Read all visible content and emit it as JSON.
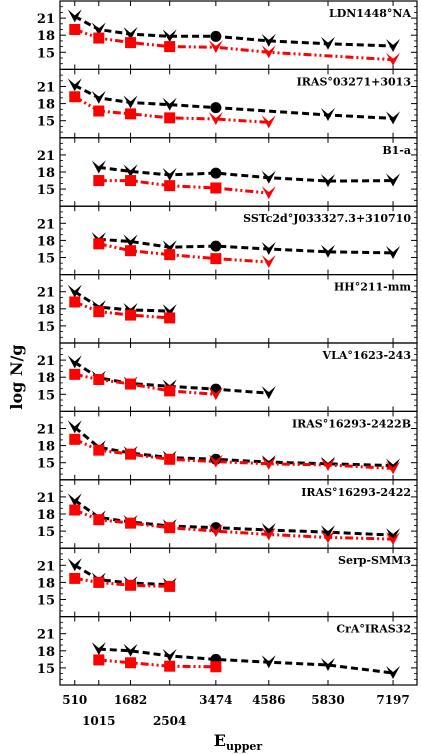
{
  "chart_data": {
    "type": "line",
    "xlabel": "E",
    "xlabel_sub": "upper",
    "ylabel": "log N/g",
    "xlim": [
      200,
      7700
    ],
    "ylim": [
      12,
      24
    ],
    "yticks": [
      15,
      18,
      21
    ],
    "xticks_top_row": [
      510,
      1682,
      3474,
      4586,
      5830,
      7197
    ],
    "xticks_bottom_row": [
      1015,
      2504
    ],
    "x_levels": [
      510,
      1015,
      1682,
      2504,
      3474,
      4586,
      5830,
      7197
    ],
    "colors": {
      "black_series": "#000000",
      "red_series": "#ff0000"
    },
    "panels": [
      {
        "title": "LDN1448°NA",
        "black": {
          "x": [
            510,
            1015,
            1682,
            2504,
            3474,
            4586,
            5830,
            7197
          ],
          "y": [
            21.3,
            19.0,
            18.2,
            17.8,
            17.8,
            17.0,
            16.5,
            16.1
          ]
        },
        "red": {
          "x": [
            510,
            1015,
            1682,
            2504,
            3474,
            4586,
            7197
          ],
          "y": [
            19.0,
            17.5,
            16.7,
            16.0,
            15.9,
            15.0,
            13.7
          ]
        }
      },
      {
        "title": "IRAS°03271+3013",
        "black": {
          "x": [
            510,
            1015,
            1682,
            2504,
            3474,
            5830,
            7197
          ],
          "y": [
            21.2,
            19.0,
            18.2,
            17.8,
            17.3,
            16.0,
            15.4
          ]
        },
        "red": {
          "x": [
            510,
            1015,
            1682,
            2504,
            3474,
            4586
          ],
          "y": [
            19.2,
            16.7,
            16.2,
            15.5,
            15.3,
            14.7
          ]
        }
      },
      {
        "title": "B1-a",
        "black": {
          "x": [
            1015,
            1682,
            2504,
            3474,
            4586,
            5830,
            7197
          ],
          "y": [
            18.8,
            18.1,
            17.5,
            17.8,
            17.0,
            16.4,
            16.5
          ]
        },
        "red": {
          "x": [
            1015,
            1682,
            2504,
            3474,
            4586
          ],
          "y": [
            16.5,
            16.5,
            15.6,
            15.2,
            14.3
          ]
        }
      },
      {
        "title": "SSTc2d°J033327.3+310710",
        "black": {
          "x": [
            1015,
            1682,
            2504,
            3474,
            4586,
            5830,
            7197
          ],
          "y": [
            18.2,
            17.8,
            16.8,
            17.0,
            16.5,
            16.0,
            15.8
          ]
        },
        "red": {
          "x": [
            1015,
            1682,
            2504,
            3474,
            4586
          ],
          "y": [
            17.4,
            16.2,
            15.5,
            14.8,
            14.2
          ]
        }
      },
      {
        "title": "HH°211-mm",
        "black": {
          "x": [
            510,
            1015,
            1682,
            2504
          ],
          "y": [
            21.0,
            18.3,
            17.8,
            17.6
          ]
        },
        "red": {
          "x": [
            510,
            1015,
            1682,
            2504
          ],
          "y": [
            19.2,
            17.5,
            16.9,
            16.4
          ]
        }
      },
      {
        "title": "VLA°1623-243",
        "black": {
          "x": [
            510,
            1015,
            1682,
            2504,
            3474,
            4586
          ],
          "y": [
            20.6,
            17.9,
            16.9,
            16.4,
            15.9,
            15.2
          ]
        },
        "red": {
          "x": [
            510,
            1015,
            1682,
            2504,
            3474
          ],
          "y": [
            18.5,
            17.6,
            16.8,
            15.6,
            15.0
          ]
        }
      },
      {
        "title": "IRAS°16293-2422B",
        "black": {
          "x": [
            510,
            1015,
            1682,
            2504,
            3474,
            4586,
            5830,
            7197
          ],
          "y": [
            21.2,
            17.7,
            16.7,
            15.9,
            15.6,
            15.1,
            14.8,
            14.5
          ]
        },
        "red": {
          "x": [
            510,
            1015,
            1682,
            2504,
            3474,
            4586,
            5830,
            7197
          ],
          "y": [
            19.1,
            17.2,
            16.5,
            15.6,
            15.2,
            14.8,
            14.6,
            14.0
          ]
        }
      },
      {
        "title": "IRAS°16293-2422",
        "black": {
          "x": [
            510,
            1015,
            1682,
            2504,
            3474,
            4586,
            5830,
            7197
          ],
          "y": [
            20.4,
            17.4,
            16.6,
            15.9,
            15.6,
            15.2,
            14.8,
            14.3
          ]
        },
        "red": {
          "x": [
            510,
            1015,
            1682,
            2504,
            3474,
            4586,
            5830,
            7197
          ],
          "y": [
            18.7,
            17.0,
            16.4,
            15.6,
            15.0,
            14.4,
            13.9,
            13.6
          ]
        }
      },
      {
        "title": "Serp-SMM3",
        "black": {
          "x": [
            510,
            1015,
            1682,
            2504
          ],
          "y": [
            21.0,
            18.5,
            17.9,
            17.6
          ]
        },
        "red": {
          "x": [
            510,
            1015,
            1682,
            2504
          ],
          "y": [
            18.7,
            18.0,
            17.5,
            17.3
          ]
        }
      },
      {
        "title": "CrA°IRAS32",
        "black": {
          "x": [
            1015,
            1682,
            2504,
            3474,
            4586,
            5830,
            7197
          ],
          "y": [
            18.3,
            18.0,
            17.1,
            16.5,
            16.0,
            15.5,
            14.1
          ]
        },
        "red": {
          "x": [
            1015,
            1682,
            2504,
            3474
          ],
          "y": [
            16.4,
            15.9,
            15.3,
            15.2
          ]
        }
      }
    ]
  }
}
